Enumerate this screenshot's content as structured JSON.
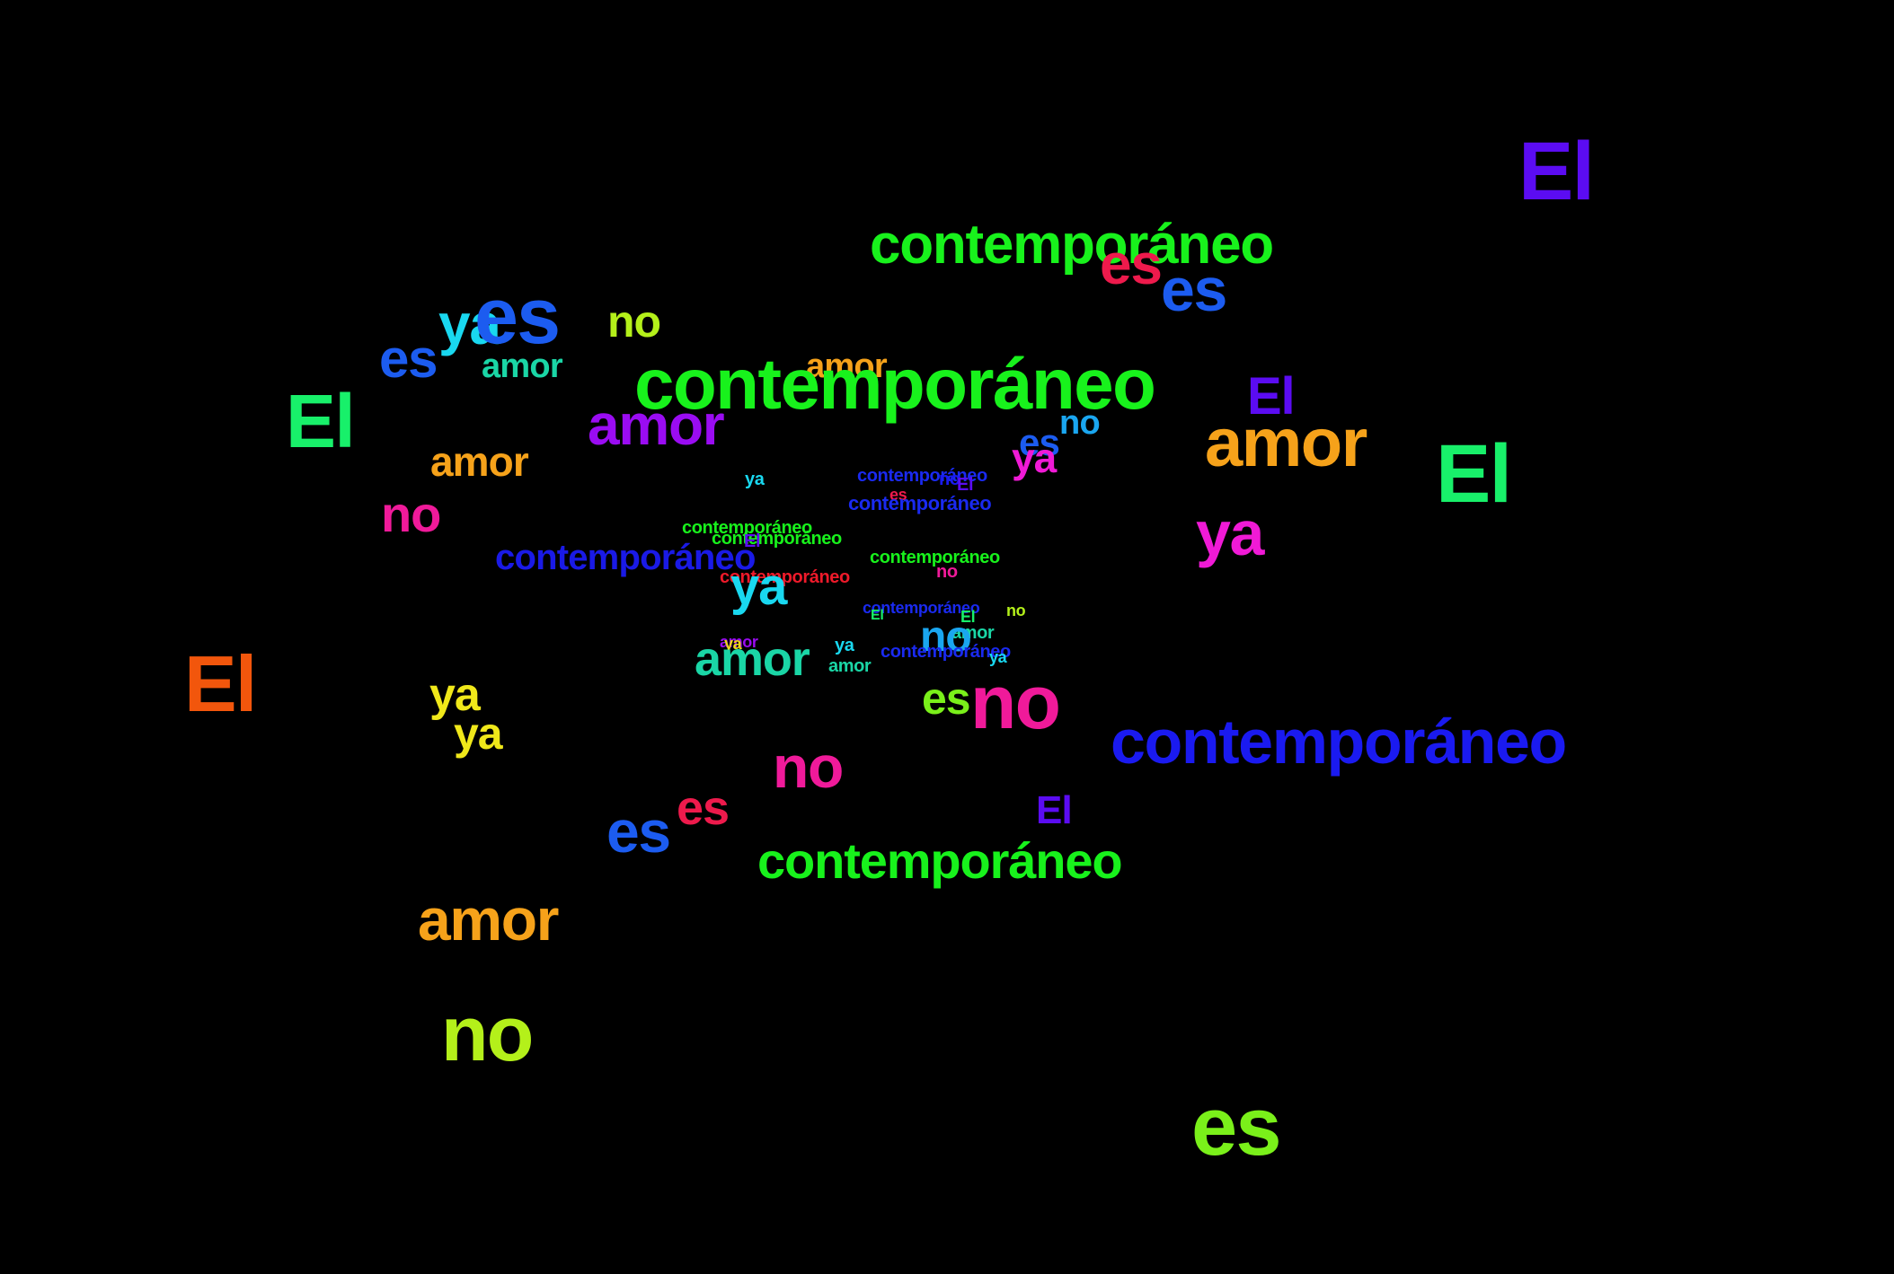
{
  "background": "#000000",
  "words": [
    {
      "text": "El",
      "color": "#5b0cf2"
    },
    {
      "text": "contemporáneo",
      "color": "#18f21c"
    },
    {
      "text": "es",
      "color": "#ee1a4c"
    },
    {
      "text": "es",
      "color": "#1c5cf0"
    },
    {
      "text": "ya",
      "color": "#19d8f0"
    },
    {
      "text": "es",
      "color": "#1c5cf0"
    },
    {
      "text": "no",
      "color": "#b4f01a"
    },
    {
      "text": "es",
      "color": "#1c5cf0"
    },
    {
      "text": "amor",
      "color": "#1ad6a6"
    },
    {
      "text": "amor",
      "color": "#f6a21a"
    },
    {
      "text": "contemporáneo",
      "color": "#18f21c"
    },
    {
      "text": "El",
      "color": "#5b0cf2"
    },
    {
      "text": "El",
      "color": "#18f06a"
    },
    {
      "text": "amor",
      "color": "#9a0cf2"
    },
    {
      "text": "no",
      "color": "#1aa6f0"
    },
    {
      "text": "es",
      "color": "#1c5cf0"
    },
    {
      "text": "amor",
      "color": "#f6a21a"
    },
    {
      "text": "ya",
      "color": "#f01ad6"
    },
    {
      "text": "El",
      "color": "#18f06a"
    },
    {
      "text": "amor",
      "color": "#f6a21a"
    },
    {
      "text": "ya",
      "color": "#19d8f0"
    },
    {
      "text": "contemporáneo",
      "color": "#1a2af0"
    },
    {
      "text": "no",
      "color": "#1a1af0"
    },
    {
      "text": "El",
      "color": "#5b0cf2"
    },
    {
      "text": "es",
      "color": "#ee1a4c"
    },
    {
      "text": "contemporáneo",
      "color": "#1a2af0"
    },
    {
      "text": "no",
      "color": "#f01a9a"
    },
    {
      "text": "ya",
      "color": "#f01ad6"
    },
    {
      "text": "contemporáneo",
      "color": "#18f21c"
    },
    {
      "text": "contemporáneo",
      "color": "#18f21c"
    },
    {
      "text": "El",
      "color": "#5b0cf2"
    },
    {
      "text": "contemporáneo",
      "color": "#1a1ae6"
    },
    {
      "text": "contemporáneo",
      "color": "#18f21c"
    },
    {
      "text": "no",
      "color": "#f01a9a"
    },
    {
      "text": "contemporáneo",
      "color": "#ee1a2a"
    },
    {
      "text": "ya",
      "color": "#19d8f0"
    },
    {
      "text": "contemporáneo",
      "color": "#1a2af0"
    },
    {
      "text": "no",
      "color": "#b4f01a"
    },
    {
      "text": "El",
      "color": "#18f06a"
    },
    {
      "text": "El",
      "color": "#18f06a"
    },
    {
      "text": "amor",
      "color": "#1ad6a6"
    },
    {
      "text": "no",
      "color": "#1aa6f0"
    },
    {
      "text": "amor",
      "color": "#9a0cf2"
    },
    {
      "text": "ya",
      "color": "#f0d81a"
    },
    {
      "text": "ya",
      "color": "#19d8f0"
    },
    {
      "text": "contemporáneo",
      "color": "#1a2af0"
    },
    {
      "text": "ya",
      "color": "#19d8f0"
    },
    {
      "text": "amor",
      "color": "#1ad6a6"
    },
    {
      "text": "amor",
      "color": "#1ad6a6"
    },
    {
      "text": "El",
      "color": "#f2560c"
    },
    {
      "text": "ya",
      "color": "#f0e81a"
    },
    {
      "text": "ya",
      "color": "#f0e81a"
    },
    {
      "text": "es",
      "color": "#7af01a"
    },
    {
      "text": "no",
      "color": "#f01a9a"
    },
    {
      "text": "contemporáneo",
      "color": "#1a1af0"
    },
    {
      "text": "no",
      "color": "#f01a9a"
    },
    {
      "text": "El",
      "color": "#5b0cf2"
    },
    {
      "text": "es",
      "color": "#1c5cf0"
    },
    {
      "text": "es",
      "color": "#ee1a4c"
    },
    {
      "text": "contemporáneo",
      "color": "#18f21c"
    },
    {
      "text": "amor",
      "color": "#f6a21a"
    },
    {
      "text": "no",
      "color": "#b4f01a"
    },
    {
      "text": "es",
      "color": "#7af01a"
    }
  ]
}
